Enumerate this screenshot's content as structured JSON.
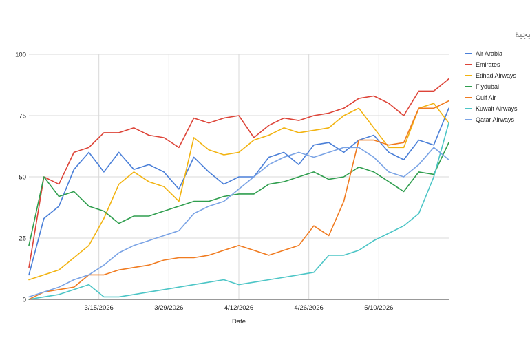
{
  "chart_data": {
    "type": "line",
    "title": "نسب تعافي شركات الطيران الخليجية",
    "xlabel": "Date",
    "ylabel": "",
    "ylim": [
      0,
      100
    ],
    "y_ticks": [
      "0",
      "25",
      "50",
      "75",
      "100"
    ],
    "x_range": [
      "2026-03-01",
      "2026-05-24"
    ],
    "x_ticks": [
      "3/15/2026",
      "3/29/2026",
      "4/12/2026",
      "4/26/2026",
      "5/10/2026"
    ],
    "grid": true,
    "legend_position": "right",
    "x": [
      "2026-03-01",
      "2026-03-04",
      "2026-03-07",
      "2026-03-10",
      "2026-03-13",
      "2026-03-16",
      "2026-03-19",
      "2026-03-22",
      "2026-03-25",
      "2026-03-28",
      "2026-03-31",
      "2026-04-03",
      "2026-04-06",
      "2026-04-09",
      "2026-04-12",
      "2026-04-15",
      "2026-04-18",
      "2026-04-21",
      "2026-04-24",
      "2026-04-27",
      "2026-04-30",
      "2026-05-03",
      "2026-05-06",
      "2026-05-09",
      "2026-05-12",
      "2026-05-15",
      "2026-05-18",
      "2026-05-21",
      "2026-05-24"
    ],
    "series": [
      {
        "name": "Air Arabia",
        "color": "#4a7fd8",
        "values": [
          10,
          33,
          38,
          53,
          60,
          52,
          60,
          53,
          55,
          52,
          45,
          58,
          52,
          47,
          50,
          50,
          58,
          60,
          55,
          63,
          64,
          60,
          65,
          67,
          60,
          57,
          65,
          63,
          78
        ]
      },
      {
        "name": "Emirates",
        "color": "#dd4438",
        "values": [
          13,
          50,
          47,
          60,
          62,
          68,
          68,
          70,
          67,
          66,
          62,
          74,
          72,
          74,
          75,
          66,
          71,
          74,
          73,
          75,
          76,
          78,
          82,
          83,
          80,
          75,
          85,
          85,
          90
        ]
      },
      {
        "name": "Etihad Airways",
        "color": "#f2b310",
        "values": [
          8,
          10,
          12,
          17,
          22,
          33,
          47,
          52,
          48,
          46,
          40,
          66,
          61,
          59,
          60,
          65,
          67,
          70,
          68,
          69,
          70,
          75,
          78,
          70,
          62,
          62,
          78,
          80,
          72
        ]
      },
      {
        "name": "Flydubai",
        "color": "#2f9e4e",
        "values": [
          22,
          50,
          42,
          44,
          38,
          36,
          31,
          34,
          34,
          36,
          38,
          40,
          40,
          42,
          43,
          43,
          47,
          48,
          50,
          52,
          49,
          50,
          54,
          52,
          48,
          44,
          52,
          51,
          64
        ]
      },
      {
        "name": "Gulf Air",
        "color": "#f07b20",
        "values": [
          0,
          3,
          4,
          5,
          10,
          10,
          12,
          13,
          14,
          16,
          17,
          17,
          18,
          20,
          22,
          20,
          18,
          20,
          22,
          30,
          26,
          40,
          65,
          65,
          63,
          64,
          78,
          78,
          81
        ]
      },
      {
        "name": "Kuwait Airways",
        "color": "#4cc5c6",
        "values": [
          0,
          1,
          2,
          4,
          6,
          1,
          1,
          2,
          3,
          4,
          5,
          6,
          7,
          8,
          6,
          7,
          8,
          9,
          10,
          11,
          18,
          18,
          20,
          24,
          27,
          30,
          35,
          50,
          72
        ]
      },
      {
        "name": "Qatar Airways",
        "color": "#7aa3e5",
        "values": [
          1,
          3,
          5,
          8,
          10,
          14,
          19,
          22,
          24,
          26,
          28,
          35,
          38,
          40,
          45,
          50,
          55,
          58,
          60,
          58,
          60,
          62,
          62,
          58,
          52,
          50,
          55,
          62,
          57
        ]
      }
    ]
  }
}
